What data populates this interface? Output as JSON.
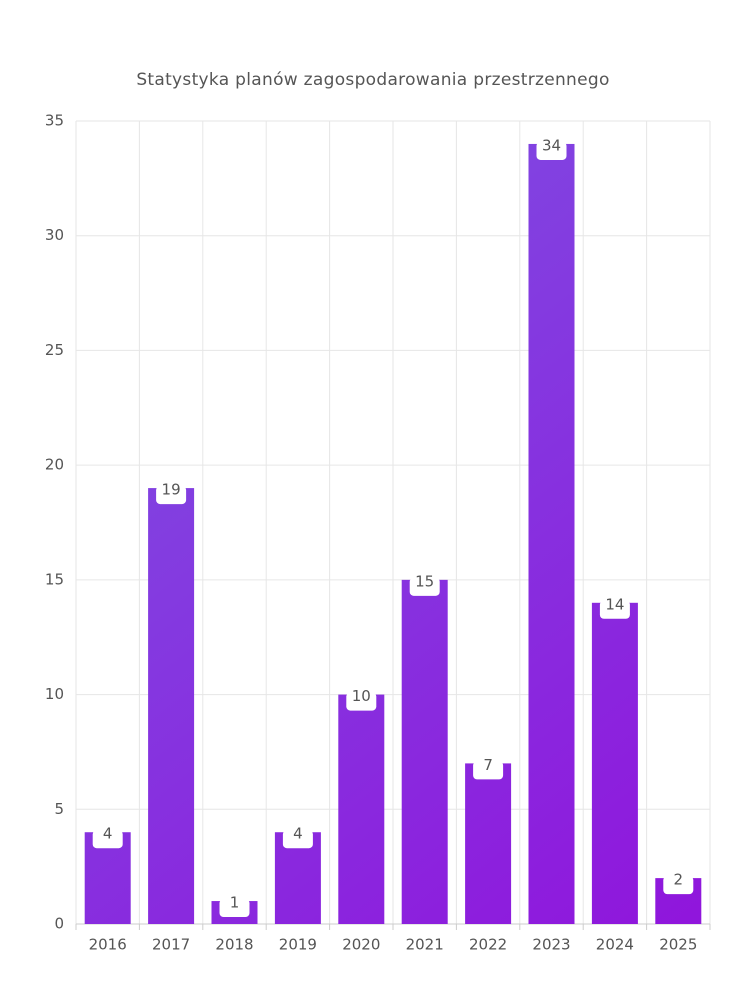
{
  "chart_data": {
    "type": "bar",
    "title": "Statystyka planów zagospodarowania przestrzennego",
    "categories": [
      "2016",
      "2017",
      "2018",
      "2019",
      "2020",
      "2021",
      "2022",
      "2023",
      "2024",
      "2025"
    ],
    "values": [
      4,
      19,
      1,
      4,
      10,
      15,
      7,
      34,
      14,
      2
    ],
    "gradient_colors": [
      "#7b55e3",
      "#9015dc"
    ],
    "ylim": [
      0,
      35
    ],
    "yticks": [
      0,
      5,
      10,
      15,
      20,
      25,
      30,
      35
    ],
    "grid": true,
    "data_labels": true
  }
}
